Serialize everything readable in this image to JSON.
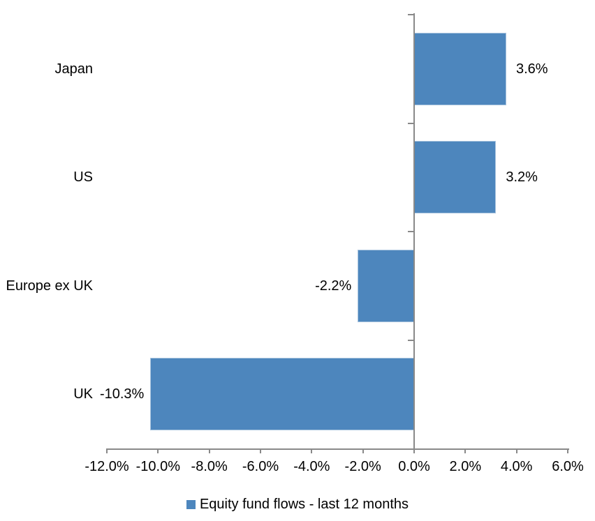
{
  "chart_data": {
    "type": "bar",
    "orientation": "horizontal",
    "title": "",
    "xlabel": "",
    "ylabel": "",
    "grid": false,
    "categories": [
      "Japan",
      "US",
      "Europe ex UK",
      "UK"
    ],
    "series": [
      {
        "name": "Equity fund flows - last 12 months",
        "values": [
          3.6,
          3.2,
          -2.2,
          -10.3
        ],
        "data_labels": [
          "3.6%",
          "3.2%",
          "-2.2%",
          "-10.3%"
        ]
      }
    ],
    "x_axis": {
      "min": -12,
      "max": 6,
      "tick_values": [
        -12,
        -10,
        -8,
        -6,
        -4,
        -2,
        0,
        2,
        4,
        6
      ],
      "tick_labels": [
        "-12.0%",
        "-10.0%",
        "-8.0%",
        "-6.0%",
        "-4.0%",
        "-2.0%",
        "0.0%",
        "2.0%",
        "4.0%",
        "6.0%"
      ]
    },
    "legend": {
      "position": "bottom",
      "label": "Equity fund flows - last 12 months"
    },
    "colors": {
      "bar": "#4D86BD",
      "bar_border": "#A9C4DE",
      "axis": "#898989",
      "text": "#000000",
      "background": "#FFFFFF"
    }
  }
}
